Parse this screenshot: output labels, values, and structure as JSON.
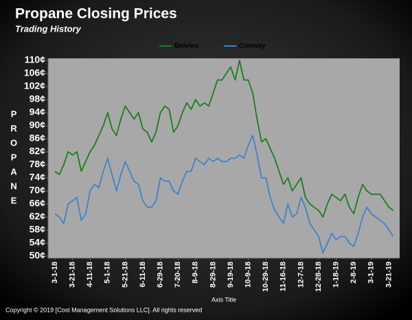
{
  "chart_data": {
    "type": "line",
    "title": "Propane Closing Prices",
    "subtitle": "Trading History",
    "y_label": "PROPANE",
    "x_label": "Axis Title",
    "footer": "Copyright © 2019 [Cost Management Solutions LLC].  All rights reserved",
    "legend": "top",
    "grid": false,
    "categories": [
      "3-1-18",
      null,
      null,
      null,
      "3-21-18",
      null,
      null,
      null,
      "4-11-18",
      null,
      null,
      null,
      "5-1-18",
      null,
      null,
      null,
      "5-21-18",
      null,
      null,
      null,
      "6-11-18",
      null,
      null,
      null,
      "6-29-18",
      null,
      null,
      null,
      "7-20-18",
      null,
      null,
      null,
      "8-9-18",
      null,
      null,
      null,
      "8-29-18",
      null,
      null,
      null,
      "9-19-18",
      null,
      null,
      null,
      "10-9-18",
      null,
      null,
      null,
      "10-29-18",
      null,
      null,
      null,
      "11-16-18",
      null,
      null,
      null,
      "12-7-18",
      null,
      null,
      null,
      "12-28-18",
      null,
      null,
      null,
      "1-18-19",
      null,
      null,
      null,
      "2-8-19",
      null,
      null,
      null,
      "3-1-19",
      null,
      null,
      null,
      "3-21-19",
      null
    ],
    "series": [
      {
        "name": "Belvieu",
        "color": "#1b7d1b",
        "values": [
          76,
          75,
          78,
          82,
          81,
          82,
          76,
          79,
          82,
          84,
          87,
          90,
          94,
          89,
          87,
          92,
          96,
          94,
          92,
          94,
          89,
          88,
          85,
          88,
          94,
          96,
          95,
          88,
          90,
          94,
          97,
          95,
          98,
          96,
          97,
          96,
          100,
          104,
          104,
          106,
          108,
          104,
          110,
          104,
          104,
          100,
          92,
          85,
          86,
          83,
          80,
          76,
          72,
          74,
          70,
          72,
          74,
          68,
          66,
          65,
          64,
          62,
          66,
          69,
          68,
          67,
          69,
          65,
          63,
          68,
          72,
          70,
          69,
          69,
          69,
          67,
          65,
          64
        ]
      },
      {
        "name": "Conway",
        "color": "#3f82cc",
        "values": [
          63,
          62,
          60,
          66,
          67,
          68,
          61,
          63,
          70,
          72,
          71,
          76,
          80,
          75,
          70,
          75,
          79,
          76,
          73,
          72,
          67,
          65,
          65,
          67,
          74,
          73,
          73,
          70,
          69,
          73,
          76,
          76,
          80,
          79,
          78,
          80,
          79,
          80,
          79,
          79,
          80,
          80,
          81,
          80,
          84,
          87,
          81,
          74,
          74,
          68,
          64,
          62,
          60,
          66,
          62,
          63,
          68,
          65,
          60,
          58,
          56,
          51,
          54,
          57,
          55,
          56,
          56,
          54,
          53,
          57,
          62,
          65,
          63,
          62,
          61,
          60,
          58,
          56
        ]
      }
    ],
    "ylim": [
      50,
      110
    ],
    "yticks": [
      {
        "value": 50,
        "label": "50¢"
      },
      {
        "value": 54,
        "label": "54¢"
      },
      {
        "value": 58,
        "label": "58¢"
      },
      {
        "value": 62,
        "label": "62¢"
      },
      {
        "value": 66,
        "label": "66¢"
      },
      {
        "value": 70,
        "label": "70¢"
      },
      {
        "value": 74,
        "label": "74¢"
      },
      {
        "value": 78,
        "label": "78¢"
      },
      {
        "value": 82,
        "label": "82¢"
      },
      {
        "value": 86,
        "label": "86¢"
      },
      {
        "value": 90,
        "label": "90¢"
      },
      {
        "value": 94,
        "label": "94¢"
      },
      {
        "value": 98,
        "label": "98¢"
      },
      {
        "value": 102,
        "label": "102¢"
      },
      {
        "value": 106,
        "label": "106¢"
      },
      {
        "value": 110,
        "label": "110¢"
      }
    ]
  }
}
